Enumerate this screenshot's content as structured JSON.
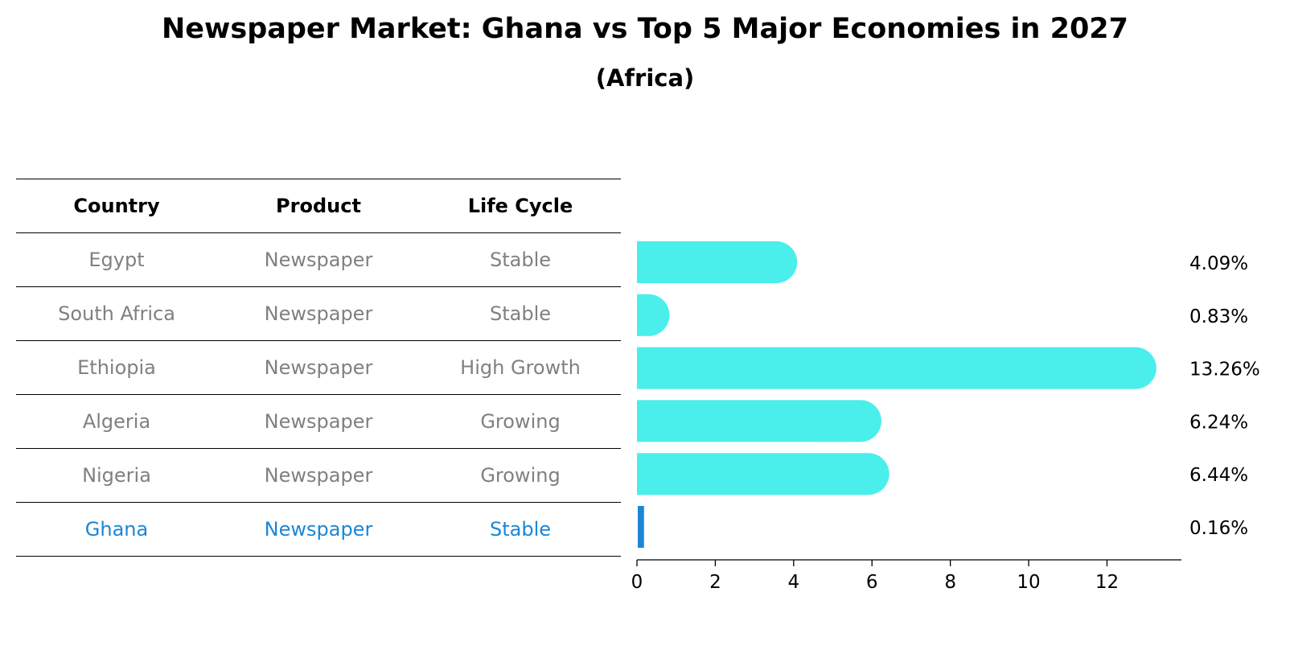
{
  "title": "Newspaper Market: Ghana vs Top 5 Major Economies in 2027",
  "subtitle": "(Africa)",
  "table": {
    "headers": [
      "Country",
      "Product",
      "Life Cycle"
    ],
    "rows": [
      [
        "Egypt",
        "Newspaper",
        "Stable"
      ],
      [
        "South Africa",
        "Newspaper",
        "Stable"
      ],
      [
        "Ethiopia",
        "Newspaper",
        "High Growth"
      ],
      [
        "Algeria",
        "Newspaper",
        "Growing"
      ],
      [
        "Nigeria",
        "Newspaper",
        "Growing"
      ],
      [
        "Ghana",
        "Newspaper",
        "Stable"
      ]
    ],
    "highlight_row": 5
  },
  "colors": {
    "bar": "#4aeeeb",
    "highlight": "#1b86d6",
    "muted_text": "#808080"
  },
  "chart_data": {
    "type": "bar",
    "orientation": "horizontal",
    "categories": [
      "Egypt",
      "South Africa",
      "Ethiopia",
      "Algeria",
      "Nigeria",
      "Ghana"
    ],
    "values": [
      4.09,
      0.83,
      13.26,
      6.24,
      6.44,
      0.16
    ],
    "value_labels": [
      "4.09%",
      "0.83%",
      "13.26%",
      "6.24%",
      "6.44%",
      "0.16%"
    ],
    "xlim": [
      0,
      13.9
    ],
    "xticks": [
      0,
      2,
      4,
      6,
      8,
      10,
      12
    ],
    "highlight_index": 5,
    "grid": false
  }
}
